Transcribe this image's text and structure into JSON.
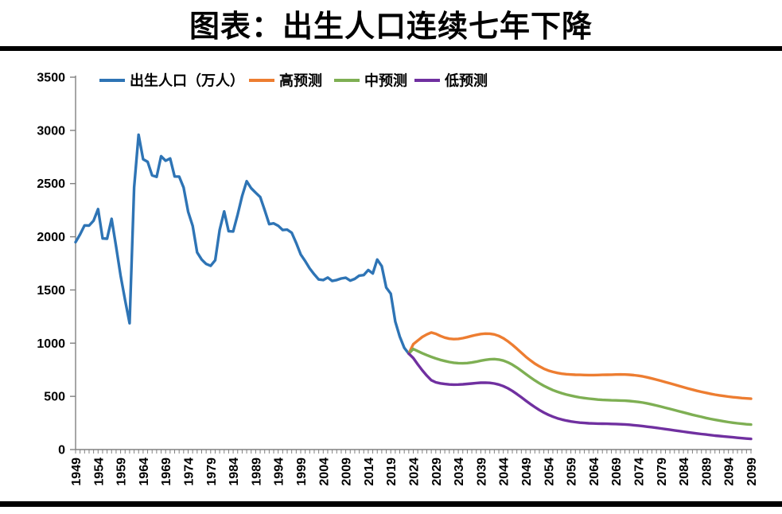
{
  "title": "图表：出生人口连续七年下降",
  "chart_data": {
    "type": "line",
    "title": "图表：出生人口连续七年下降",
    "xlabel": "",
    "ylabel": "",
    "unit": "万人",
    "ylim": [
      0,
      3500
    ],
    "y_ticks": [
      0,
      500,
      1000,
      1500,
      2000,
      2500,
      3000,
      3500
    ],
    "x_range": [
      1949,
      2099
    ],
    "x_tick_every": 1,
    "x_label_every": 5,
    "x_tick_labels": [
      1949,
      1954,
      1959,
      1964,
      1969,
      1974,
      1979,
      1984,
      1989,
      1994,
      1999,
      2004,
      2009,
      2014,
      2019,
      2024,
      2029,
      2034,
      2039,
      2044,
      2049,
      2054,
      2059,
      2064,
      2069,
      2074,
      2079,
      2084,
      2089,
      2094,
      2099
    ],
    "grid": false,
    "legend_position": "top-inside",
    "axis_color": "#808080",
    "text_color": "#000000",
    "series": [
      {
        "name": "出生人口（万人）",
        "color": "#2E74B5",
        "start_year": 1949,
        "values": [
          1950,
          2023,
          2107,
          2105,
          2151,
          2260,
          1984,
          1982,
          2169,
          1909,
          1635,
          1402,
          1187,
          2464,
          2959,
          2729,
          2704,
          2577,
          2563,
          2757,
          2715,
          2736,
          2567,
          2566,
          2463,
          2235,
          2102,
          1853,
          1786,
          1745,
          1727,
          1779,
          2064,
          2238,
          2052,
          2050,
          2211,
          2384,
          2522,
          2457,
          2414,
          2374,
          2250,
          2119,
          2126,
          2104,
          2063,
          2067,
          2038,
          1942,
          1834,
          1771,
          1702,
          1647,
          1599,
          1593,
          1617,
          1585,
          1594,
          1608,
          1615,
          1588,
          1604,
          1635,
          1640,
          1687,
          1655,
          1786,
          1723,
          1523,
          1465,
          1202,
          1062,
          956,
          902
        ]
      },
      {
        "name": "高预测",
        "color": "#ED7D31",
        "start_year": 2023,
        "values": [
          902,
          990,
          1025,
          1058,
          1082,
          1100,
          1088,
          1068,
          1052,
          1042,
          1038,
          1040,
          1047,
          1057,
          1068,
          1078,
          1086,
          1090,
          1089,
          1082,
          1068,
          1046,
          1018,
          985,
          948,
          910,
          872,
          838,
          808,
          782,
          760,
          743,
          730,
          720,
          713,
          708,
          705,
          703,
          702,
          701,
          700,
          700,
          701,
          702,
          703,
          704,
          705,
          706,
          705,
          703,
          699,
          694,
          687,
          678,
          668,
          657,
          646,
          634,
          622,
          610,
          598,
          586,
          574,
          563,
          552,
          542,
          533,
          524,
          516,
          509,
          503,
          497,
          492,
          488,
          484,
          481,
          478
        ]
      },
      {
        "name": "中预测",
        "color": "#7EAF53",
        "start_year": 2023,
        "values": [
          902,
          945,
          925,
          906,
          888,
          871,
          856,
          843,
          832,
          823,
          816,
          812,
          811,
          813,
          818,
          826,
          835,
          843,
          848,
          850,
          846,
          836,
          820,
          798,
          771,
          741,
          710,
          679,
          650,
          623,
          599,
          578,
          559,
          543,
          529,
          517,
          507,
          498,
          490,
          484,
          479,
          474,
          470,
          467,
          465,
          463,
          462,
          461,
          459,
          456,
          452,
          447,
          441,
          433,
          424,
          414,
          404,
          393,
          382,
          371,
          360,
          349,
          338,
          327,
          317,
          307,
          297,
          288,
          280,
          272,
          265,
          258,
          252,
          247,
          242,
          238,
          235
        ]
      },
      {
        "name": "低预测",
        "color": "#7030A0",
        "start_year": 2023,
        "values": [
          902,
          860,
          800,
          745,
          695,
          652,
          632,
          622,
          616,
          612,
          610,
          611,
          613,
          617,
          621,
          625,
          628,
          629,
          627,
          621,
          611,
          596,
          576,
          551,
          522,
          491,
          459,
          428,
          399,
          372,
          348,
          327,
          309,
          294,
          282,
          272,
          264,
          258,
          253,
          250,
          247,
          245,
          244,
          243,
          242,
          241,
          240,
          238,
          236,
          233,
          229,
          225,
          220,
          215,
          210,
          204,
          198,
          192,
          186,
          180,
          174,
          168,
          162,
          156,
          151,
          146,
          141,
          136,
          131,
          127,
          123,
          119,
          115,
          111,
          107,
          103,
          100
        ]
      }
    ]
  }
}
